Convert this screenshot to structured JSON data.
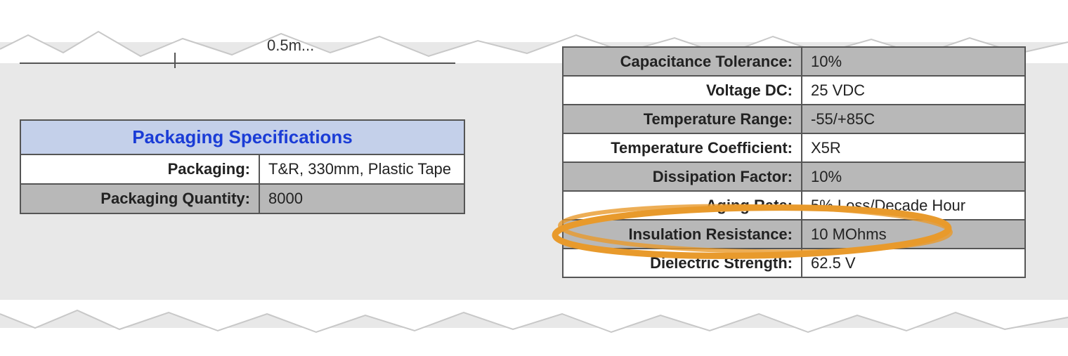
{
  "fragment_top": "0.5m...",
  "packaging_table": {
    "title": "Packaging Specifications",
    "rows": [
      {
        "label": "Packaging:",
        "value": "T&R, 330mm, Plastic Tape",
        "alt": false
      },
      {
        "label": "Packaging Quantity:",
        "value": "8000",
        "alt": true
      }
    ]
  },
  "specs_table": {
    "rows": [
      {
        "label": "Capacitance Tolerance:",
        "value": "10%",
        "alt": true
      },
      {
        "label": "Voltage DC:",
        "value": "25 VDC",
        "alt": false
      },
      {
        "label": "Temperature Range:",
        "value": "-55/+85C",
        "alt": true
      },
      {
        "label": "Temperature Coefficient:",
        "value": "X5R",
        "alt": false
      },
      {
        "label": "Dissipation Factor:",
        "value": "10%",
        "alt": true
      },
      {
        "label": "Aging Rate:",
        "value": "5% Loss/Decade Hour",
        "alt": false
      },
      {
        "label": "Insulation Resistance:",
        "value": "10 MOhms",
        "alt": true
      },
      {
        "label": "Dielectric Strength:",
        "value": "62.5 V",
        "alt": false
      }
    ]
  },
  "highlight": {
    "stroke": "#e89a2c",
    "stroke_width": 9
  },
  "colors": {
    "header_bg": "#c4d0ea",
    "header_text": "#1a3cd6",
    "row_alt": "#b8b8b8",
    "border": "#555555",
    "page_bg_gray": "#e8e8e8"
  }
}
